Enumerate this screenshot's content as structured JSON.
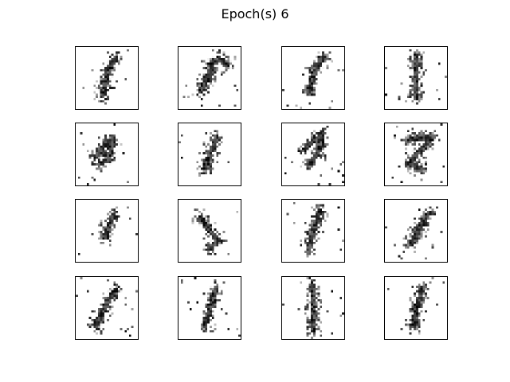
{
  "figure": {
    "title": "Epoch(s) 6",
    "rows": 4,
    "cols": 4,
    "image_size": 28,
    "colors": {
      "ink": "#000000",
      "background": "#ffffff",
      "frame": "#000000"
    }
  }
}
